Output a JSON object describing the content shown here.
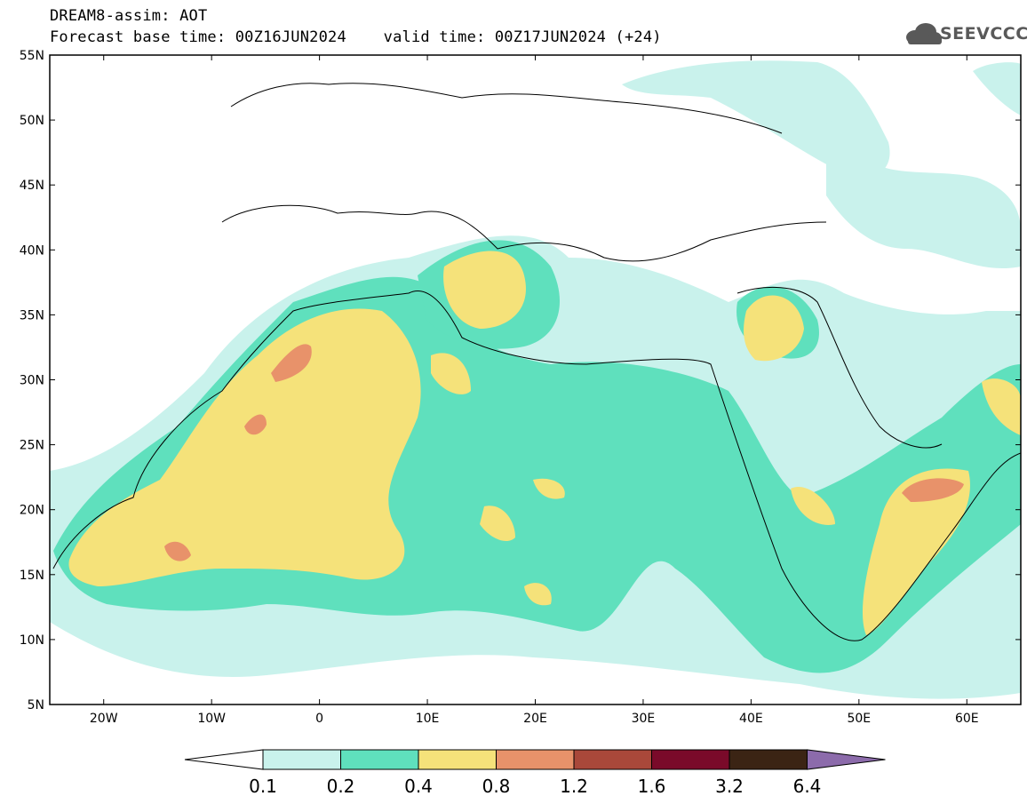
{
  "header": {
    "title": "DREAM8-assim: AOT",
    "line2": "Forecast base time: 00Z16JUN2024    valid time: 00Z17JUN2024 (+24)",
    "logo_text": "SEEVCCC"
  },
  "map": {
    "lon_range": [
      -25,
      65
    ],
    "lat_range": [
      5,
      55
    ],
    "lat_ticks": [
      "55N",
      "50N",
      "45N",
      "40N",
      "35N",
      "30N",
      "25N",
      "20N",
      "15N",
      "10N",
      "5N"
    ],
    "lon_ticks": [
      "20W",
      "10W",
      "0",
      "10E",
      "20E",
      "30E",
      "40E",
      "50E",
      "60E"
    ]
  },
  "colorbar": {
    "labels": [
      "0.1",
      "0.2",
      "0.4",
      "0.8",
      "1.2",
      "1.6",
      "3.2",
      "6.4"
    ],
    "colors": [
      "#c9f2ec",
      "#5fe0bd",
      "#f5e27a",
      "#e8926a",
      "#a9483a",
      "#7a0a2a",
      "#3b2414",
      "#8c6bab"
    ]
  }
}
